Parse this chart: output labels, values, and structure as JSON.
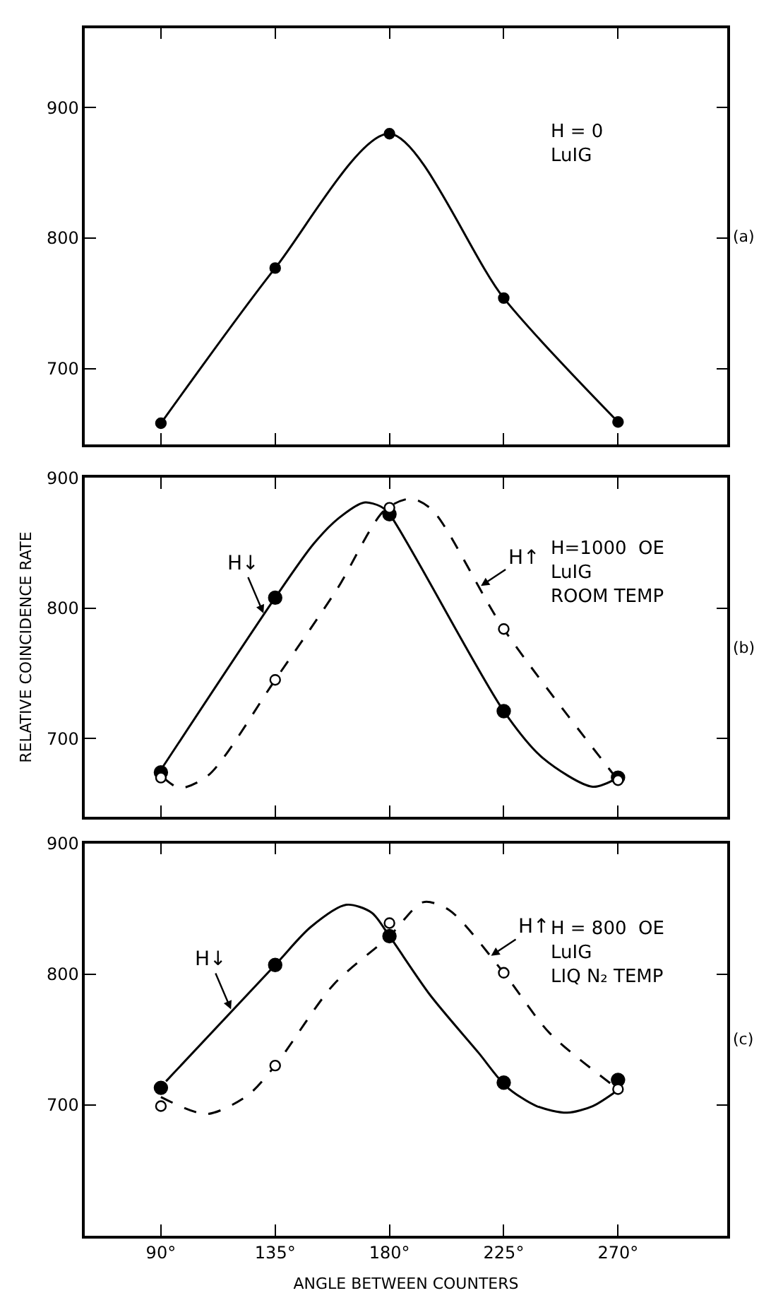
{
  "chart_data": [
    {
      "type": "line",
      "xlim": [
        60,
        313
      ],
      "ylim": [
        642,
        961
      ],
      "xticks": [
        {
          "value": 90,
          "label": null
        },
        {
          "value": 135,
          "label": null
        },
        {
          "value": 180,
          "label": null
        },
        {
          "value": 225,
          "label": null
        },
        {
          "value": 270,
          "label": null
        }
      ],
      "yticks": [
        700,
        800,
        900
      ],
      "tick_labels": "y",
      "series": [
        {
          "line_style": "solid",
          "marker": "circle",
          "color": "#000000",
          "x": [
            90,
            135,
            180,
            225,
            270
          ],
          "values": [
            658,
            777,
            880,
            754,
            659
          ]
        }
      ],
      "annotations": [
        "H = 0\nLuIG",
        "(a)"
      ]
    },
    {
      "type": "line",
      "xlim": [
        60,
        313
      ],
      "ylim": [
        640,
        900
      ],
      "xticks": [
        {
          "value": 90,
          "label": null
        },
        {
          "value": 135,
          "label": null
        },
        {
          "value": 180,
          "label": null
        },
        {
          "value": 225,
          "label": null
        },
        {
          "value": 270,
          "label": null
        }
      ],
      "yticks": [
        700,
        800,
        900
      ],
      "ylabel": "RELATIVE COINCIDENCE RATE",
      "tick_labels": "y",
      "series": [
        {
          "line_style": "solid",
          "marker": "none",
          "color": "#000000",
          "x": [
            90,
            135,
            150,
            160,
            170,
            176.5,
            180,
            225,
            240.4,
            260,
            270
          ],
          "values": [
            676,
            808,
            849,
            869,
            881,
            878,
            872,
            721,
            685,
            663,
            670
          ]
        },
        {
          "line_style": "dashed",
          "marker": "none",
          "color": "#000000",
          "x": [
            91,
            97.5,
            108.8,
            135,
            159.5,
            178,
            188.5,
            197,
            225,
            270
          ],
          "values": [
            670,
            662,
            672,
            745,
            815,
            875,
            884,
            875,
            784,
            668
          ]
        },
        {
          "type": "scatter",
          "marker": "circle",
          "color": "#000000",
          "x": [
            90,
            135,
            180,
            225,
            270
          ],
          "values": [
            674,
            808,
            872,
            721,
            670
          ]
        },
        {
          "type": "scatter",
          "marker": "circle",
          "color": "#ffffff",
          "x": [
            90,
            135,
            180,
            225,
            270
          ],
          "values": [
            670,
            745,
            877,
            784,
            668
          ]
        }
      ],
      "annotations": [
        "H=1000  OE\nLuIG\nROOM TEMP",
        "(b)",
        {
          "text": "H↓",
          "x": 130.4,
          "y": 796
        },
        {
          "text": "H↑",
          "x": 216,
          "y": 817
        }
      ]
    },
    {
      "type": "line",
      "xlim": [
        60,
        313
      ],
      "ylim": [
        600,
        900
      ],
      "xticks": [
        {
          "value": 90,
          "label": "90°"
        },
        {
          "value": 135,
          "label": "135°"
        },
        {
          "value": 180,
          "label": "180°"
        },
        {
          "value": 225,
          "label": "225°"
        },
        {
          "value": 270,
          "label": "270°"
        }
      ],
      "yticks": [
        700,
        800,
        900
      ],
      "xlabel": "ANGLE BETWEEN COUNTERS",
      "series": [
        {
          "line_style": "solid",
          "marker": "none",
          "color": "#000000",
          "x": [
            92,
            135,
            149,
            163,
            173,
            180,
            196,
            215,
            226,
            238,
            250,
            260,
            269
          ],
          "values": [
            718,
            807,
            836,
            853,
            847,
            829,
            784,
            740,
            714,
            699,
            694,
            699,
            710
          ]
        },
        {
          "line_style": "dashed",
          "marker": "none",
          "color": "#000000",
          "x": [
            90,
            108,
            124,
            135,
            158,
            180,
            193.3,
            203.5,
            225,
            243,
            270
          ],
          "values": [
            706,
            693,
            707,
            730,
            792,
            829,
            855,
            849,
            801,
            755,
            712
          ]
        },
        {
          "type": "scatter",
          "marker": "circle",
          "color": "#000000",
          "x": [
            90,
            135,
            180,
            225,
            270
          ],
          "values": [
            713,
            807,
            829,
            717,
            719
          ]
        },
        {
          "type": "scatter",
          "marker": "circle",
          "color": "#ffffff",
          "x": [
            90,
            135,
            180,
            225,
            270
          ],
          "values": [
            699,
            730,
            839,
            801,
            712
          ]
        }
      ],
      "annotations": [
        "H = 800  OE\nLuIG\nLIQ N₂ TEMP",
        "(c)",
        {
          "text": "H↓",
          "x": 117.6,
          "y": 773
        },
        {
          "text": "H↑",
          "x": 220,
          "y": 814
        }
      ]
    }
  ]
}
